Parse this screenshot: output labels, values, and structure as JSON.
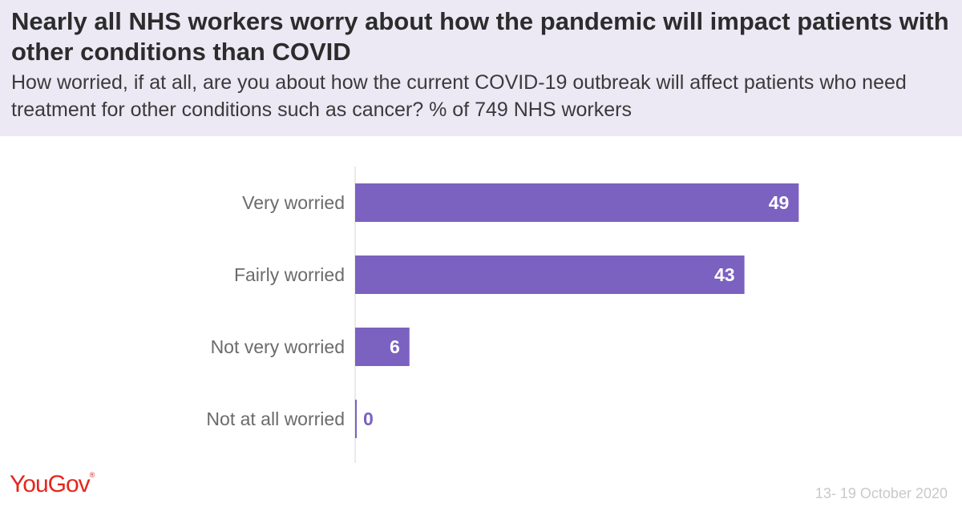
{
  "header": {
    "title": "Nearly all NHS workers worry about how the pandemic will impact patients with other conditions than COVID",
    "subtitle": "How worried, if at all, are you about how the current COVID-19 outbreak will affect patients who need treatment for other conditions such as cancer? % of 749 NHS workers"
  },
  "chart_data": {
    "type": "bar",
    "orientation": "horizontal",
    "title": "Nearly all NHS workers worry about how the pandemic will impact patients with other conditions than COVID",
    "subtitle": "How worried, if at all, are you about how the current COVID-19 outbreak will affect patients who need treatment for other conditions such as cancer? % of 749 NHS workers",
    "categories": [
      "Very worried",
      "Fairly worried",
      "Not very worried",
      "Not at all worried"
    ],
    "values": [
      49,
      43,
      6,
      0
    ],
    "unit": "%",
    "xlim": [
      0,
      58
    ],
    "bar_color": "#7b61c0",
    "grid": false,
    "legend": "none"
  },
  "footer": {
    "brand": "YouGov",
    "brand_mark": "®",
    "date": "13- 19 October 2020"
  },
  "colors": {
    "header_bg": "#ece9f5",
    "bar": "#7b61c0",
    "brand": "#e5261c"
  }
}
